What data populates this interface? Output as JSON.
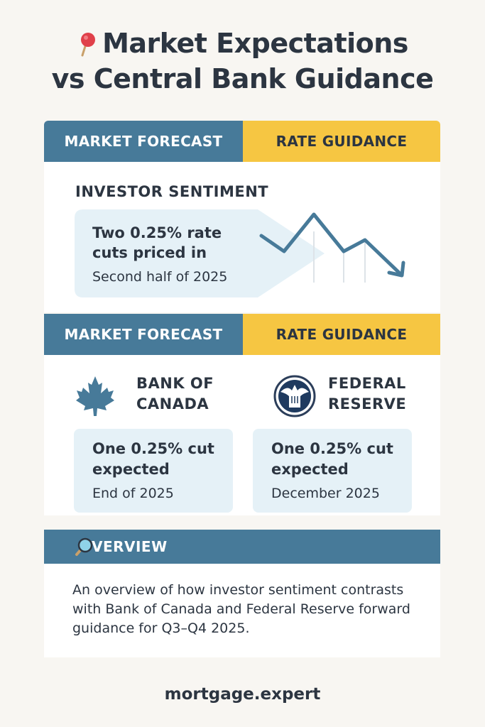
{
  "title": {
    "line1": "Market Expectations",
    "line2": "vs Central Bank Guidance",
    "icon": "pushpin-icon"
  },
  "colors": {
    "band_blue": "#477a99",
    "band_yellow": "#f6c642",
    "bubble_bg": "#e5f1f7",
    "text_dark": "#2c3541",
    "pin_red": "#e0404a"
  },
  "section1": {
    "left_label": "MARKET FORECAST",
    "right_label": "RATE GUIDANCE",
    "heading": "INVESTOR SENTIMENT",
    "bubble_main": "Two 0.25%  rate cuts priced in",
    "bubble_sub": "Second half of 2025",
    "trend_icon": "downward-trend-arrow-icon"
  },
  "section2": {
    "left_label": "MARKET FORECAST",
    "right_label": "RATE GUIDANCE",
    "boc": {
      "name_line1": "BANK OF",
      "name_line2": "CANADA",
      "icon": "maple-leaf-icon",
      "main": "One 0.25% cut expected",
      "sub": "End of 2025"
    },
    "fed": {
      "name_line1": "FEDERAL",
      "name_line2": "RESERVE",
      "icon": "federal-reserve-seal-icon",
      "main": "One 0.25% cut expected",
      "sub": "December 2025"
    }
  },
  "overview": {
    "label": "OVERVIEW",
    "icon": "magnifier-icon",
    "text": "An overview of how investor sentiment contrasts with Bank of Canada and Federal Reserve forward guidance for Q3–Q4 2025."
  },
  "footer": {
    "brand": "mortgage.expert"
  }
}
